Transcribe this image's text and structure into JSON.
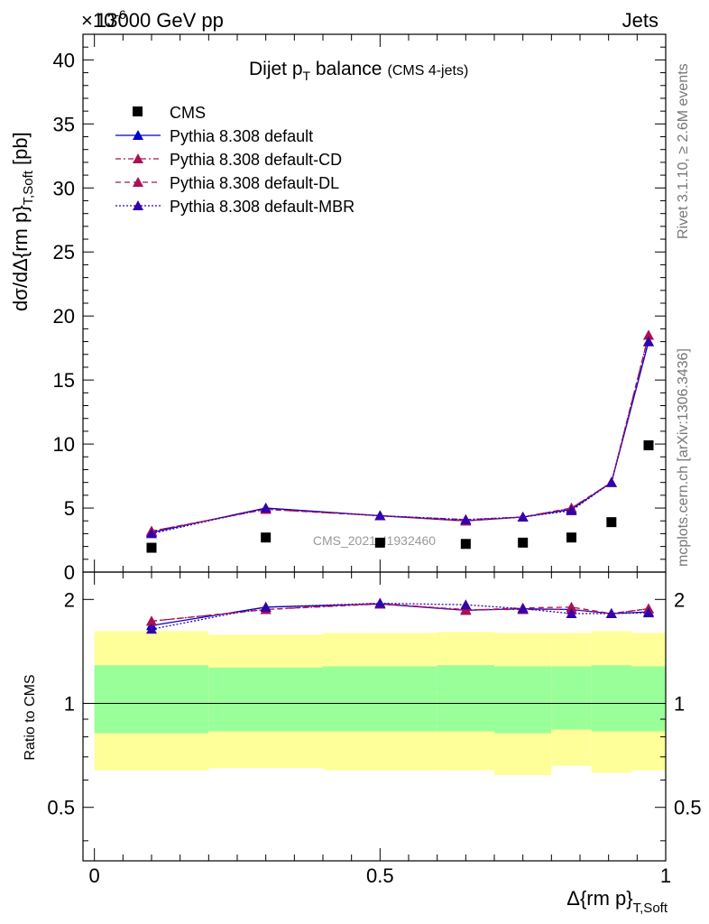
{
  "header": {
    "left": "13000 GeV pp",
    "right": "Jets",
    "exponent_prefix": "×10",
    "exponent": "-6"
  },
  "side_labels": {
    "rivet": "Rivet 3.1.10, ≥ 2.6M events",
    "mcplots": "mcplots.cern.ch [arXiv:1306.3436]"
  },
  "main": {
    "title_main": "Dijet p",
    "title_sub": "T",
    "title_rest": " balance",
    "title_small": "(CMS 4-jets)",
    "ylabel_main": "dσ/dΔ{rm p}",
    "ylabel_sub": "T,Soft",
    "ylabel_unit": " [pb]",
    "watermark": "CMS_2021_I1932460",
    "yticks": [
      "0",
      "5",
      "10",
      "15",
      "20",
      "25",
      "30",
      "35",
      "40"
    ]
  },
  "ratio": {
    "ylabel": "Ratio to CMS",
    "ytick_left": [
      "0.5",
      "1",
      "2"
    ],
    "ytick_right": [
      "0.5",
      "1",
      "2"
    ]
  },
  "xaxis": {
    "ticks": [
      "0",
      "0.5",
      "1"
    ],
    "label_main": "Δ{rm p}",
    "label_sub": "T,Soft"
  },
  "legend": [
    {
      "label": "CMS"
    },
    {
      "label": "Pythia 8.308 default"
    },
    {
      "label": "Pythia 8.308 default-CD"
    },
    {
      "label": "Pythia 8.308 default-DL"
    },
    {
      "label": "Pythia 8.308 default-MBR"
    }
  ],
  "chart_data": {
    "type": "scatter",
    "xlim": [
      -0.02,
      1.0
    ],
    "ylim": [
      0,
      42
    ],
    "ylim_unit_exponent": -6,
    "ratio_ylim": [
      0.35,
      2.4
    ],
    "ratio_scale": "log",
    "x_bin_edges": [
      0,
      0.2,
      0.4,
      0.6,
      0.7,
      0.8,
      0.87,
      0.94,
      1.0
    ],
    "x": [
      0.1,
      0.3,
      0.5,
      0.65,
      0.75,
      0.835,
      0.905,
      0.97
    ],
    "series": [
      {
        "name": "CMS",
        "style": "marker",
        "color": "#000000",
        "values": [
          1.9,
          2.7,
          2.3,
          2.2,
          2.3,
          2.7,
          3.9,
          9.9
        ]
      },
      {
        "name": "Pythia 8.308 default",
        "style": "solid",
        "color": "#0000cc",
        "values": [
          3.1,
          5.0,
          4.4,
          4.0,
          4.3,
          4.9,
          7.0,
          18.0
        ],
        "ratio": [
          1.68,
          1.9,
          1.94,
          1.86,
          1.88,
          1.87,
          1.82,
          1.84
        ]
      },
      {
        "name": "Pythia 8.308 default-CD",
        "style": "dashdot",
        "color": "#aa1155",
        "values": [
          3.2,
          4.9,
          4.4,
          4.1,
          4.3,
          5.0,
          7.0,
          18.5
        ],
        "ratio": [
          1.73,
          1.87,
          1.94,
          1.87,
          1.87,
          1.87,
          1.82,
          1.88
        ]
      },
      {
        "name": "Pythia 8.308 default-DL",
        "style": "dashed",
        "color": "#aa1155",
        "values": [
          3.2,
          4.9,
          4.4,
          4.0,
          4.3,
          5.0,
          7.0,
          18.5
        ],
        "ratio": [
          1.73,
          1.87,
          1.95,
          1.86,
          1.89,
          1.9,
          1.82,
          1.88
        ]
      },
      {
        "name": "Pythia 8.308 default-MBR",
        "style": "dotted",
        "color": "#3300aa",
        "values": [
          3.0,
          5.0,
          4.4,
          4.1,
          4.3,
          4.8,
          7.0,
          18.0
        ],
        "ratio": [
          1.64,
          1.9,
          1.95,
          1.93,
          1.88,
          1.82,
          1.82,
          1.83
        ]
      }
    ],
    "ratio_band_1sigma": [
      [
        0.82,
        1.29
      ],
      [
        0.83,
        1.27
      ],
      [
        0.83,
        1.28
      ],
      [
        0.83,
        1.29
      ],
      [
        0.82,
        1.28
      ],
      [
        0.84,
        1.28
      ],
      [
        0.83,
        1.29
      ],
      [
        0.83,
        1.28
      ]
    ],
    "ratio_band_2sigma": [
      [
        0.64,
        1.62
      ],
      [
        0.65,
        1.58
      ],
      [
        0.64,
        1.6
      ],
      [
        0.64,
        1.61
      ],
      [
        0.62,
        1.6
      ],
      [
        0.66,
        1.6
      ],
      [
        0.63,
        1.62
      ],
      [
        0.64,
        1.6
      ]
    ]
  }
}
